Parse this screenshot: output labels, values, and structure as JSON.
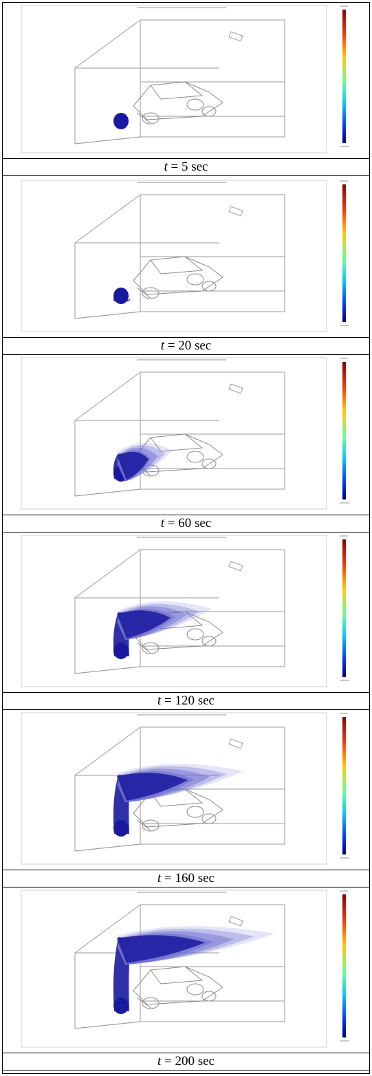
{
  "panels": [
    {
      "t_label": "t",
      "eq": "= 5 sec",
      "plume_extent": 0.0
    },
    {
      "t_label": "t",
      "eq": "= 20 sec",
      "plume_extent": 0.05
    },
    {
      "t_label": "t",
      "eq": "= 60 sec",
      "plume_extent": 0.35
    },
    {
      "t_label": "t",
      "eq": "= 120 sec",
      "plume_extent": 0.6
    },
    {
      "t_label": "t",
      "eq": "= 160 sec",
      "plume_extent": 0.8
    },
    {
      "t_label": "t",
      "eq": "= 200 sec",
      "plume_extent": 1.0
    }
  ],
  "colors": {
    "plume": "#1a1aa0",
    "plume_light": "#6f6fd0",
    "wire": "#9a9a9a"
  }
}
